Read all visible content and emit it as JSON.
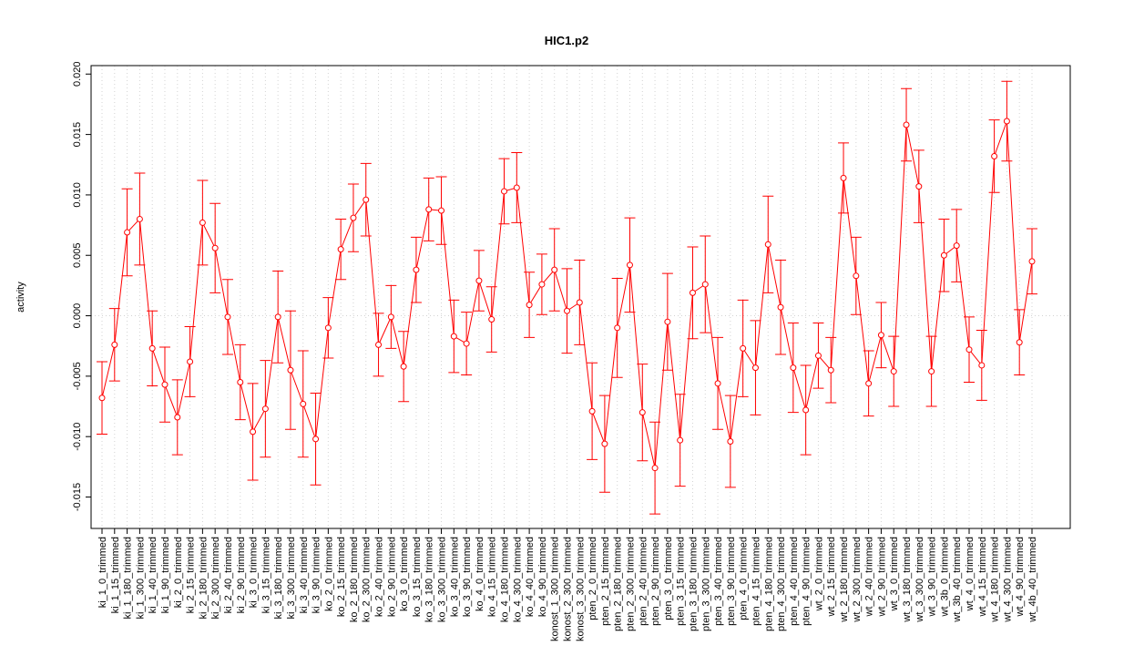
{
  "chart_data": {
    "type": "errorbar-line",
    "title": "HIC1.p2",
    "y_label": "activity",
    "categories": [
      "ki_1_0_trimmed",
      "ki_1_15_trimmed",
      "ki_1_180_trimmed",
      "ki_1_300_trimmed",
      "ki_1_40_trimmed",
      "ki_1_90_trimmed",
      "ki_2_0_trimmed",
      "ki_2_15_trimmed",
      "ki_2_180_trimmed",
      "ki_2_300_trimmed",
      "ki_2_40_trimmed",
      "ki_2_90_trimmed",
      "ki_3_0_trimmed",
      "ki_3_15_trimmed",
      "ki_3_180_trimmed",
      "ki_3_300_trimmed",
      "ki_3_40_trimmed",
      "ki_3_90_trimmed",
      "ko_2_0_trimmed",
      "ko_2_15_trimmed",
      "ko_2_180_trimmed",
      "ko_2_300_trimmed",
      "ko_2_40_trimmed",
      "ko_2_90_trimmed",
      "ko_3_0_trimmed",
      "ko_3_15_trimmed",
      "ko_3_180_trimmed",
      "ko_3_300_trimmed",
      "ko_3_40_trimmed",
      "ko_3_90_trimmed",
      "ko_4_0_trimmed",
      "ko_4_15_trimmed",
      "ko_4_180_trimmed",
      "ko_4_300_trimmed",
      "ko_4_40_trimmed",
      "ko_4_90_trimmed",
      "konost_1_300_trimmed",
      "konost_2_300_trimmed",
      "konost_3_300_trimmed",
      "pten_2_0_trimmed",
      "pten_2_15_trimmed",
      "pten_2_180_trimmed",
      "pten_2_300_trimmed",
      "pten_2_40_trimmed",
      "pten_2_90_trimmed",
      "pten_3_0_trimmed",
      "pten_3_15_trimmed",
      "pten_3_180_trimmed",
      "pten_3_300_trimmed",
      "pten_3_40_trimmed",
      "pten_3_90_trimmed",
      "pten_4_0_trimmed",
      "pten_4_15_trimmed",
      "pten_4_180_trimmed",
      "pten_4_300_trimmed",
      "pten_4_40_trimmed",
      "pten_4_90_trimmed",
      "wt_2_0_trimmed",
      "wt_2_15_trimmed",
      "wt_2_180_trimmed",
      "wt_2_300_trimmed",
      "wt_2_40_trimmed",
      "wt_2_90_trimmed",
      "wt_3_0_trimmed",
      "wt_3_180_trimmed",
      "wt_3_300_trimmed",
      "wt_3_90_trimmed",
      "wt_3b_0_trimmed",
      "wt_3b_40_trimmed",
      "wt_4_0_trimmed",
      "wt_4_15_trimmed",
      "wt_4_180_trimmed",
      "wt_4_300_trimmed",
      "wt_4_90_trimmed",
      "wt_4b_40_trimmed"
    ],
    "series": [
      {
        "color": "#ff0000",
        "values": [
          -0.0068,
          -0.0024,
          0.0069,
          0.008,
          -0.0027,
          -0.0057,
          -0.0084,
          -0.0038,
          0.0077,
          0.0056,
          -0.0001,
          -0.0055,
          -0.0096,
          -0.0077,
          -0.0001,
          -0.0045,
          -0.0073,
          -0.0102,
          -0.001,
          0.0055,
          0.0081,
          0.0096,
          -0.0024,
          -0.0001,
          -0.0042,
          0.0038,
          0.0088,
          0.0087,
          -0.0017,
          -0.0023,
          0.0029,
          -0.0003,
          0.0103,
          0.0106,
          0.0009,
          0.0026,
          0.0038,
          0.0004,
          0.0011,
          -0.0079,
          -0.0106,
          -0.001,
          0.0042,
          -0.008,
          -0.0126,
          -0.0005,
          -0.0103,
          0.0019,
          0.0026,
          -0.0056,
          -0.0104,
          -0.0027,
          -0.0043,
          0.0059,
          0.0007,
          -0.0043,
          -0.0078,
          -0.0033,
          -0.0045,
          0.0114,
          0.0033,
          -0.0056,
          -0.0016,
          -0.0046,
          0.0158,
          0.0107,
          -0.0046,
          0.005,
          0.0058,
          -0.0028,
          -0.0041,
          0.0132,
          0.0161,
          -0.0022,
          0.0045
        ],
        "errors": [
          0.003,
          0.003,
          0.0036,
          0.0038,
          0.0031,
          0.0031,
          0.0031,
          0.0029,
          0.0035,
          0.0037,
          0.0031,
          0.0031,
          0.004,
          0.004,
          0.0038,
          0.0049,
          0.0044,
          0.0038,
          0.0025,
          0.0025,
          0.0028,
          0.003,
          0.0026,
          0.0026,
          0.0029,
          0.0027,
          0.0026,
          0.0028,
          0.003,
          0.0026,
          0.0025,
          0.0027,
          0.0027,
          0.0029,
          0.0027,
          0.0025,
          0.0034,
          0.0035,
          0.0035,
          0.004,
          0.004,
          0.0041,
          0.0039,
          0.004,
          0.0038,
          0.004,
          0.0038,
          0.0038,
          0.004,
          0.0038,
          0.0038,
          0.004,
          0.0039,
          0.004,
          0.0039,
          0.0037,
          0.0037,
          0.0027,
          0.0027,
          0.0029,
          0.0032,
          0.0027,
          0.0027,
          0.0029,
          0.003,
          0.003,
          0.0029,
          0.003,
          0.003,
          0.0027,
          0.0029,
          0.003,
          0.0033,
          0.0027,
          0.0027
        ]
      }
    ],
    "ylim": [
      -0.0176,
      0.0207
    ],
    "yticks": [
      {
        "value": -0.015,
        "label": "-0.015"
      },
      {
        "value": -0.01,
        "label": "-0.010"
      },
      {
        "value": -0.005,
        "label": "-0.005"
      },
      {
        "value": 0,
        "label": "0.000"
      },
      {
        "value": 0.005,
        "label": "0.005"
      },
      {
        "value": 0.01,
        "label": "0.010"
      },
      {
        "value": 0.015,
        "label": "0.015"
      },
      {
        "value": 0.02,
        "label": "0.020"
      }
    ],
    "grid": true,
    "reference_line": 0
  }
}
